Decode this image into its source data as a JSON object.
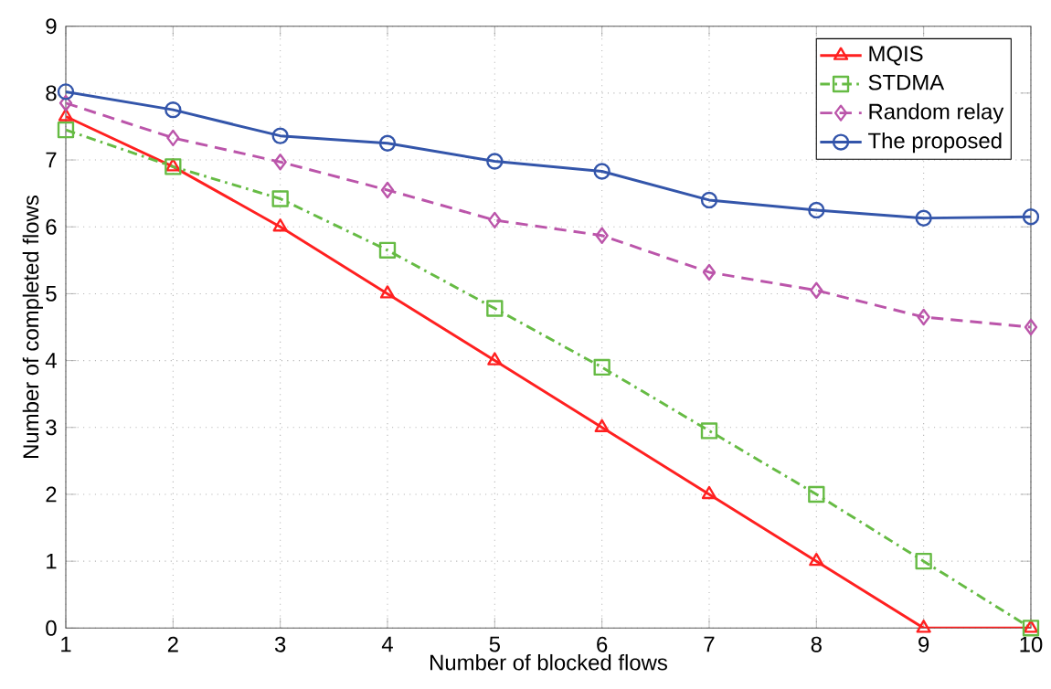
{
  "chart_data": {
    "type": "line",
    "xlabel": "Number of blocked flows",
    "ylabel": "Number of completed flows",
    "x": [
      1,
      2,
      3,
      4,
      5,
      6,
      7,
      8,
      9,
      10
    ],
    "xlim": [
      1,
      10
    ],
    "xticks": [
      1,
      2,
      3,
      4,
      5,
      6,
      7,
      8,
      9,
      10
    ],
    "ylim": [
      0,
      9
    ],
    "yticks": [
      0,
      1,
      2,
      3,
      4,
      5,
      6,
      7,
      8,
      9
    ],
    "grid": true,
    "legend": "top right",
    "series": [
      {
        "name": "MQIS",
        "color": "#ff2020",
        "marker": "triangle",
        "line_style": "solid",
        "values": [
          7.65,
          6.9,
          6.0,
          5.0,
          4.0,
          3.0,
          2.0,
          1.0,
          0,
          0
        ]
      },
      {
        "name": "STDMA",
        "color": "#66bb44",
        "marker": "square",
        "line_style": "dashdot",
        "values": [
          7.45,
          6.9,
          6.42,
          5.65,
          4.78,
          3.9,
          2.95,
          2.0,
          1.0,
          0
        ]
      },
      {
        "name": "Random relay",
        "color": "#bb55aa",
        "marker": "diamond",
        "line_style": "dashed",
        "values": [
          7.85,
          7.33,
          6.97,
          6.55,
          6.1,
          5.87,
          5.32,
          5.05,
          4.65,
          4.5
        ]
      },
      {
        "name": "The proposed",
        "color": "#3355aa",
        "marker": "circle",
        "line_style": "solid",
        "values": [
          8.02,
          7.75,
          7.36,
          7.25,
          6.98,
          6.83,
          6.4,
          6.25,
          6.13,
          6.15
        ]
      }
    ]
  }
}
